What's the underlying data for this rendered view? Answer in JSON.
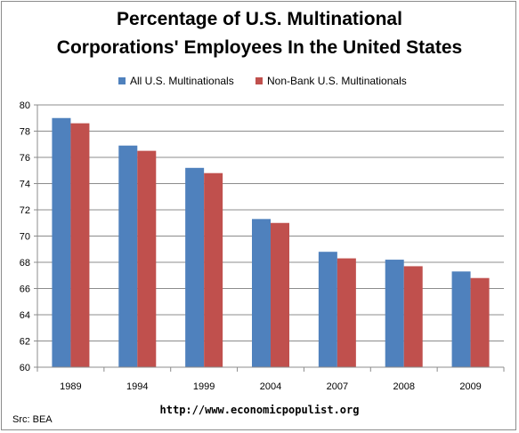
{
  "title_line1": "Percentage of U.S. Multinational",
  "title_line2": "Corporations' Employees In the United States",
  "source_url": "http://www.economicpopulist.org",
  "source_note": "Src: BEA",
  "colors": {
    "series1": "#4f81bd",
    "series2": "#c0504d",
    "grid": "#8c8c8c"
  },
  "chart_data": {
    "type": "bar",
    "title": "Percentage of U.S. Multinational Corporations' Employees In the United States",
    "categories": [
      "1989",
      "1994",
      "1999",
      "2004",
      "2007",
      "2008",
      "2009"
    ],
    "series": [
      {
        "name": "All U.S. Multinationals",
        "values": [
          79.0,
          76.9,
          75.2,
          71.3,
          68.8,
          68.2,
          67.3
        ]
      },
      {
        "name": "Non-Bank U.S. Multinationals",
        "values": [
          78.6,
          76.5,
          74.8,
          71.0,
          68.3,
          67.7,
          66.8
        ]
      }
    ],
    "ylim": [
      60,
      80
    ],
    "yticks": [
      "60",
      "62",
      "64",
      "66",
      "68",
      "70",
      "72",
      "74",
      "76",
      "78",
      "80"
    ],
    "grid": true,
    "legend_position": "top"
  }
}
